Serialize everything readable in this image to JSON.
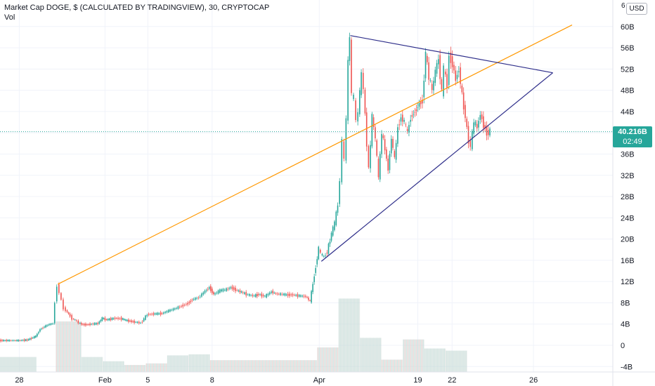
{
  "header": {
    "title": "Market Cap DOGE, $ (CALCULATED BY TRADINGVIEW), 30, CRYPTOCAP",
    "volume_label": "Vol",
    "currency": "USD",
    "axis_top_stub": "6"
  },
  "last_price": {
    "value": "40.216B",
    "countdown": "02:49",
    "numeric": 40.216
  },
  "colors": {
    "up": "#26a69a",
    "down": "#ef5350",
    "trendline_orange": "#ff9800",
    "triangle": "#2e2e8a",
    "grid": "#f0f3fa",
    "axis_text": "#131722",
    "volume": "#d6dbd8"
  },
  "chart_data": {
    "type": "candlestick",
    "ylim": [
      -4,
      64
    ],
    "y_ticks": [
      "-4B",
      "0",
      "4B",
      "8B",
      "12B",
      "16B",
      "20B",
      "24B",
      "28B",
      "32B",
      "36B",
      "40B",
      "44B",
      "48B",
      "52B",
      "56B",
      "60B"
    ],
    "y_tick_values": [
      -4,
      0,
      4,
      8,
      12,
      16,
      20,
      24,
      28,
      32,
      36,
      40,
      44,
      48,
      52,
      56,
      60
    ],
    "x_ticks": [
      "28",
      "Feb",
      "5",
      "8",
      "Apr",
      "19",
      "22",
      "26"
    ],
    "x_tick_days": [
      0,
      4,
      6,
      9,
      14,
      18.6,
      20.2,
      24
    ],
    "x_day_range": [
      -0.9,
      25.8
    ],
    "grid": true,
    "legend": "top-left",
    "price_series": [
      [
        -0.9,
        0.9
      ],
      [
        -0.5,
        0.9
      ],
      [
        0.0,
        0.9
      ],
      [
        0.4,
        1.0
      ],
      [
        0.8,
        1.7
      ],
      [
        1.0,
        3.0
      ],
      [
        1.2,
        3.5
      ],
      [
        1.4,
        3.9
      ],
      [
        1.6,
        4.1
      ],
      [
        1.7,
        8.0
      ],
      [
        1.8,
        11.3
      ],
      [
        1.9,
        10.0
      ],
      [
        2.0,
        8.4
      ],
      [
        2.1,
        7.0
      ],
      [
        2.2,
        6.6
      ],
      [
        2.4,
        5.5
      ],
      [
        2.5,
        5.0
      ],
      [
        2.7,
        4.6
      ],
      [
        2.8,
        4.2
      ],
      [
        3.0,
        3.9
      ],
      [
        3.2,
        3.9
      ],
      [
        3.4,
        4.0
      ],
      [
        3.7,
        4.1
      ],
      [
        3.9,
        5.1
      ],
      [
        4.1,
        4.8
      ],
      [
        4.5,
        5.1
      ],
      [
        4.8,
        5.0
      ],
      [
        5.0,
        4.7
      ],
      [
        5.4,
        4.4
      ],
      [
        5.7,
        4.2
      ],
      [
        6.0,
        5.8
      ],
      [
        6.3,
        5.9
      ],
      [
        6.7,
        6.0
      ],
      [
        7.0,
        6.5
      ],
      [
        7.3,
        6.9
      ],
      [
        7.6,
        7.4
      ],
      [
        7.9,
        7.9
      ],
      [
        8.1,
        8.6
      ],
      [
        8.4,
        9.0
      ],
      [
        8.7,
        10.2
      ],
      [
        8.9,
        10.9
      ],
      [
        9.1,
        9.6
      ],
      [
        9.4,
        10.3
      ],
      [
        9.7,
        10.5
      ],
      [
        9.9,
        10.9
      ],
      [
        10.2,
        10.3
      ],
      [
        10.4,
        10.0
      ],
      [
        10.7,
        9.5
      ],
      [
        11.0,
        9.3
      ],
      [
        11.2,
        9.6
      ],
      [
        11.5,
        9.2
      ],
      [
        11.8,
        10.1
      ],
      [
        12.0,
        9.7
      ],
      [
        12.3,
        9.6
      ],
      [
        12.5,
        9.5
      ],
      [
        12.8,
        9.5
      ],
      [
        13.1,
        9.3
      ],
      [
        13.4,
        9.2
      ],
      [
        13.6,
        8.3
      ],
      [
        14.0,
        18.2
      ],
      [
        14.1,
        17.2
      ],
      [
        14.25,
        16.6
      ],
      [
        14.4,
        17.6
      ],
      [
        14.6,
        21.0
      ],
      [
        14.75,
        23.0
      ],
      [
        14.9,
        26.5
      ],
      [
        15.0,
        31.0
      ],
      [
        15.1,
        38.5
      ],
      [
        15.2,
        35.0
      ],
      [
        15.3,
        42.5
      ],
      [
        15.38,
        53.5
      ],
      [
        15.45,
        58.0
      ],
      [
        15.55,
        47.0
      ],
      [
        15.65,
        46.5
      ],
      [
        15.75,
        42.0
      ],
      [
        15.85,
        44.0
      ],
      [
        16.0,
        51.0
      ],
      [
        16.1,
        48.5
      ],
      [
        16.25,
        38.0
      ],
      [
        16.35,
        33.0
      ],
      [
        16.5,
        43.0
      ],
      [
        16.65,
        39.0
      ],
      [
        16.8,
        31.5
      ],
      [
        16.95,
        40.0
      ],
      [
        17.1,
        37.0
      ],
      [
        17.25,
        33.0
      ],
      [
        17.4,
        39.0
      ],
      [
        17.55,
        35.0
      ],
      [
        17.7,
        41.0
      ],
      [
        17.85,
        43.0
      ],
      [
        18.0,
        42.0
      ],
      [
        18.15,
        40.0
      ],
      [
        18.3,
        43.0
      ],
      [
        18.5,
        44.0
      ],
      [
        18.7,
        45.5
      ],
      [
        18.85,
        46.0
      ],
      [
        19.0,
        55.0
      ],
      [
        19.15,
        50.5
      ],
      [
        19.3,
        48.0
      ],
      [
        19.45,
        51.5
      ],
      [
        19.6,
        54.0
      ],
      [
        19.75,
        47.5
      ],
      [
        19.85,
        52.0
      ],
      [
        20.0,
        49.0
      ],
      [
        20.1,
        54.5
      ],
      [
        20.25,
        53.0
      ],
      [
        20.4,
        50.0
      ],
      [
        20.55,
        52.0
      ],
      [
        20.7,
        47.0
      ],
      [
        20.85,
        43.0
      ],
      [
        21.0,
        38.5
      ],
      [
        21.1,
        37.5
      ],
      [
        21.25,
        42.0
      ],
      [
        21.4,
        41.0
      ],
      [
        21.55,
        43.5
      ],
      [
        21.7,
        41.5
      ],
      [
        21.85,
        40.0
      ],
      [
        22.0,
        40.2
      ]
    ],
    "volume_series": [
      {
        "start": -0.9,
        "end": 0.8,
        "value": 1.8
      },
      {
        "start": 1.7,
        "end": 2.9,
        "value": 8.5
      },
      {
        "start": 2.9,
        "end": 3.9,
        "value": 1.8
      },
      {
        "start": 3.9,
        "end": 4.9,
        "value": 1.0
      },
      {
        "start": 4.9,
        "end": 5.9,
        "value": 0.3
      },
      {
        "start": 5.9,
        "end": 6.9,
        "value": 0.6
      },
      {
        "start": 6.9,
        "end": 7.9,
        "value": 2.1
      },
      {
        "start": 7.9,
        "end": 8.9,
        "value": 2.3
      },
      {
        "start": 8.9,
        "end": 13.9,
        "value": 1.2
      },
      {
        "start": 13.9,
        "end": 14.9,
        "value": 3.6
      },
      {
        "start": 14.9,
        "end": 15.9,
        "value": 12.8
      },
      {
        "start": 15.9,
        "end": 16.9,
        "value": 5.4
      },
      {
        "start": 16.9,
        "end": 17.9,
        "value": 1.3
      },
      {
        "start": 17.9,
        "end": 18.9,
        "value": 5.1
      },
      {
        "start": 18.9,
        "end": 19.9,
        "value": 3.4
      },
      {
        "start": 19.9,
        "end": 20.9,
        "value": 3.0
      }
    ],
    "trendlines": [
      {
        "kind": "orange",
        "from": [
          1.8,
          11.5
        ],
        "to": [
          25.8,
          60.3
        ]
      },
      {
        "kind": "triangle-upper",
        "from": [
          15.45,
          58.3
        ],
        "to": [
          24.9,
          51.3
        ]
      },
      {
        "kind": "triangle-lower",
        "from": [
          14.1,
          15.8
        ],
        "to": [
          24.9,
          51.3
        ]
      }
    ]
  }
}
